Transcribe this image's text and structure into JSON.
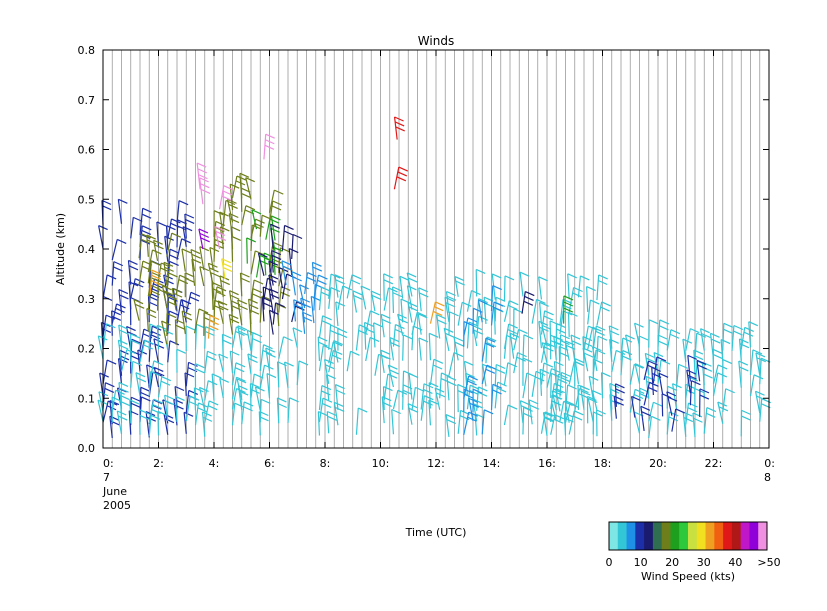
{
  "chart_data": {
    "type": "wind-barb time-height plot",
    "title": "Winds",
    "xlabel": "Time (UTC)",
    "ylabel": "Altitude (km)",
    "ylim": [
      0.0,
      0.8
    ],
    "xlim": [
      0,
      24
    ],
    "y_ticks": [
      "0.0",
      "0.1",
      "0.2",
      "0.3",
      "0.4",
      "0.5",
      "0.6",
      "0.7",
      "0.8"
    ],
    "x_ticks": [
      "0:",
      "2:",
      "4:",
      "6:",
      "8:",
      "10:",
      "12:",
      "14:",
      "16:",
      "18:",
      "20:",
      "22:",
      "0:"
    ],
    "start_date": [
      "7",
      "June",
      "2005"
    ],
    "end_date": "8",
    "colorbar": {
      "label": "Wind Speed (kts)",
      "tick_labels": [
        "0",
        "10",
        "20",
        "30",
        "40",
        ">50"
      ],
      "colors": [
        "#7fe6e6",
        "#33c6d6",
        "#1e90e6",
        "#1c2fa8",
        "#1a1a6e",
        "#2f6e50",
        "#6e7e1a",
        "#1ea01e",
        "#2ec83c",
        "#c8e040",
        "#f0e020",
        "#f0a020",
        "#f06010",
        "#e01818",
        "#b01818",
        "#c018c8",
        "#9000d8",
        "#f090e0"
      ]
    },
    "grid": "vertical lines",
    "series": [
      {
        "time_range": [
          0.0,
          3.2
        ],
        "altitude_range": [
          0.02,
          0.45
        ],
        "speed_kts": "10-15",
        "color": "#1c2fa8"
      },
      {
        "time_range": [
          0.0,
          7.0
        ],
        "altitude_range": [
          0.02,
          0.2
        ],
        "speed_kts": "0-8",
        "color": "#33c6d6"
      },
      {
        "time_range": [
          1.3,
          4.0
        ],
        "altitude_range": [
          0.2,
          0.4
        ],
        "speed_kts": "15-20",
        "color": "#6e7e1a"
      },
      {
        "time_range": [
          4.0,
          6.4
        ],
        "altitude_range": [
          0.22,
          0.5
        ],
        "speed_kts": "15-25",
        "color": "#6e7e1a"
      },
      {
        "time_range": [
          5.2,
          6.2
        ],
        "altitude_range": [
          0.34,
          0.46
        ],
        "speed_kts": "20-25",
        "color": "#1ea01e"
      },
      {
        "time_range": [
          5.8,
          7.0
        ],
        "altitude_range": [
          0.22,
          0.4
        ],
        "speed_kts": "10-15",
        "color": "#1a1a6e"
      },
      {
        "time_range": [
          6.6,
          7.8
        ],
        "altitude_range": [
          0.2,
          0.35
        ],
        "speed_kts": "8-12",
        "color": "#1e90e6"
      },
      {
        "time_range": [
          7.8,
          18.0
        ],
        "altitude_range": [
          0.02,
          0.3
        ],
        "speed_kts": "0-8",
        "color": "#33c6d6"
      },
      {
        "time_range": [
          13.0,
          14.0
        ],
        "altitude_range": [
          0.02,
          0.3
        ],
        "speed_kts": "8-12",
        "color": "#1e90e6"
      },
      {
        "time_range": [
          16.0,
          23.8
        ],
        "altitude_range": [
          0.02,
          0.2
        ],
        "speed_kts": "0-8",
        "color": "#33c6d6"
      },
      {
        "time_range": [
          18.5,
          21.5
        ],
        "altitude_range": [
          0.03,
          0.15
        ],
        "speed_kts": "10-15",
        "color": "#1c2fa8"
      }
    ],
    "isolated_barbs": [
      {
        "time": 3.5,
        "altitude": 0.52,
        "speed_kts": ">50",
        "color": "#f090e0"
      },
      {
        "time": 3.6,
        "altitude": 0.49,
        "speed_kts": ">50",
        "color": "#f090e0"
      },
      {
        "time": 4.2,
        "altitude": 0.48,
        "speed_kts": ">50",
        "color": "#f090e0"
      },
      {
        "time": 5.8,
        "altitude": 0.58,
        "speed_kts": ">50",
        "color": "#f090e0"
      },
      {
        "time": 3.6,
        "altitude": 0.4,
        "speed_kts": "40-45",
        "color": "#9000d8"
      },
      {
        "time": 4.2,
        "altitude": 0.4,
        "speed_kts": ">50",
        "color": "#f090e0"
      },
      {
        "time": 4.4,
        "altitude": 0.34,
        "speed_kts": "30-35",
        "color": "#f0e020"
      },
      {
        "time": 3.8,
        "altitude": 0.22,
        "speed_kts": "35",
        "color": "#f0a020"
      },
      {
        "time": 1.7,
        "altitude": 0.31,
        "speed_kts": "30",
        "color": "#f0a020"
      },
      {
        "time": 10.6,
        "altitude": 0.62,
        "speed_kts": "45",
        "color": "#e01818"
      },
      {
        "time": 10.5,
        "altitude": 0.52,
        "speed_kts": "45",
        "color": "#e01818"
      },
      {
        "time": 11.8,
        "altitude": 0.25,
        "speed_kts": "30",
        "color": "#f0a020"
      },
      {
        "time": 16.6,
        "altitude": 0.25,
        "speed_kts": "20",
        "color": "#1ea01e"
      },
      {
        "time": 15.1,
        "altitude": 0.27,
        "speed_kts": "20",
        "color": "#1a1a6e"
      }
    ]
  }
}
